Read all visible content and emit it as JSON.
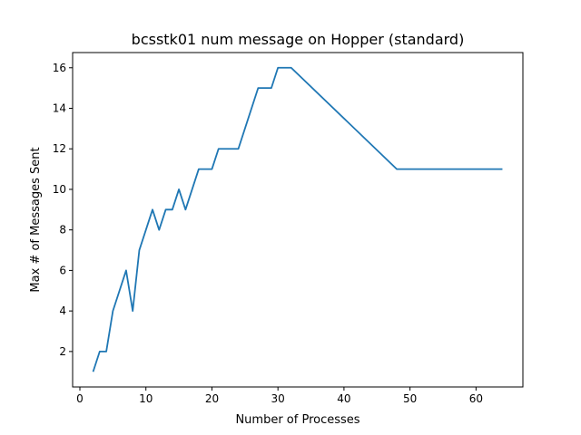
{
  "chart_data": {
    "type": "line",
    "title": "bcsstk01 num message on Hopper (standard)",
    "xlabel": "Number of Processes",
    "ylabel": "Max # of Messages Sent",
    "xlim": [
      -1.1,
      67.1
    ],
    "ylim": [
      0.25,
      16.75
    ],
    "xticks": [
      0,
      10,
      20,
      30,
      40,
      50,
      60
    ],
    "yticks": [
      2,
      4,
      6,
      8,
      10,
      12,
      14,
      16
    ],
    "grid": false,
    "legend": "none",
    "series": [
      {
        "color": "#1f77b4",
        "x": [
          2,
          3,
          4,
          5,
          6,
          7,
          8,
          9,
          10,
          11,
          12,
          13,
          14,
          15,
          16,
          18,
          20,
          21,
          22,
          24,
          27,
          29,
          30,
          31,
          32,
          48,
          64
        ],
        "y": [
          1,
          2,
          2,
          4,
          5,
          6,
          4,
          7,
          8,
          9,
          8,
          9,
          9,
          10,
          9,
          11,
          11,
          12,
          12,
          12,
          15,
          15,
          16,
          16,
          16,
          11,
          11
        ]
      }
    ]
  }
}
